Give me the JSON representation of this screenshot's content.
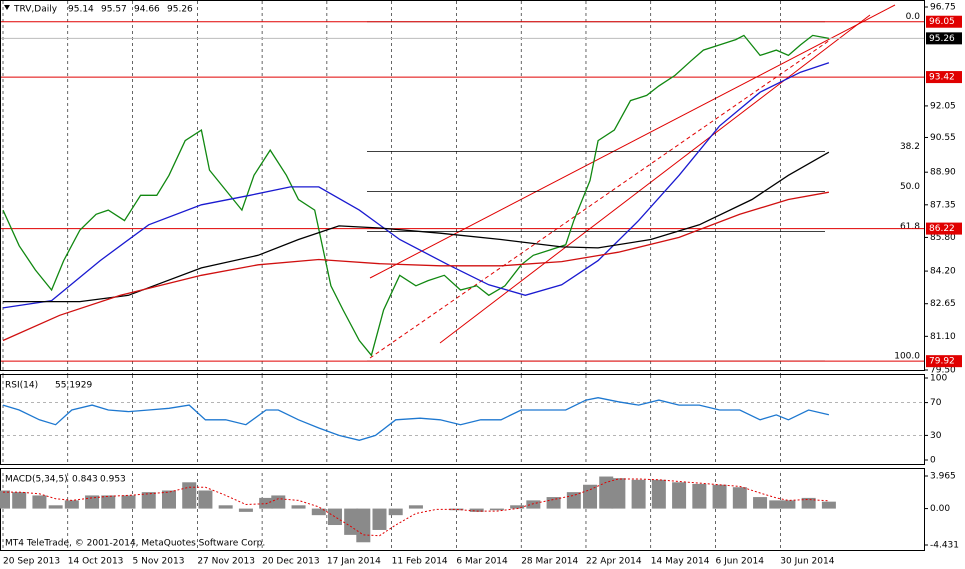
{
  "chart_data": [
    {
      "type": "line",
      "title": "TRV,Daily",
      "ohlc": [
        95.14,
        95.57,
        94.66,
        95.26
      ],
      "xlim": [
        0,
        227
      ],
      "xticks": [
        {
          "value": 0,
          "label": "20 Sep 2013"
        },
        {
          "value": 16,
          "label": "14 Oct 2013"
        },
        {
          "value": 32,
          "label": "5 Nov 2013"
        },
        {
          "value": 48,
          "label": "27 Nov 2013"
        },
        {
          "value": 64,
          "label": "20 Dec 2013"
        },
        {
          "value": 80,
          "label": "17 Jan 2014"
        },
        {
          "value": 96,
          "label": "11 Feb 2014"
        },
        {
          "value": 112,
          "label": "6 Mar 2014"
        },
        {
          "value": 128,
          "label": "28 Mar 2014"
        },
        {
          "value": 144,
          "label": "22 Apr 2014"
        },
        {
          "value": 160,
          "label": "14 May 2014"
        },
        {
          "value": 176,
          "label": "6 Jun 2014"
        },
        {
          "value": 192,
          "label": "30 Jun 2014"
        }
      ],
      "ylim": [
        79.5,
        96.75
      ],
      "yticks": [
        {
          "value": 79.5,
          "label": "79.50"
        },
        {
          "value": 81.1,
          "label": "81.10"
        },
        82.65,
        {
          "value": 84.2,
          "label": "84.20"
        },
        {
          "value": 85.8,
          "label": "85.80"
        },
        87.35,
        {
          "value": 88.9,
          "label": "88.90"
        },
        90.55,
        92.05,
        96.75
      ],
      "grid": true,
      "series": [
        {
          "color": "#118811",
          "x": [
            0,
            4,
            8,
            12,
            15,
            19,
            23,
            26,
            30,
            34,
            38,
            41,
            45,
            49,
            51,
            55,
            59,
            62,
            66,
            70,
            73,
            77,
            81,
            84,
            88,
            91,
            94,
            98,
            102,
            105,
            109,
            113,
            117,
            120,
            124,
            128,
            131,
            135,
            139,
            141,
            145,
            147,
            151,
            155,
            159,
            162,
            166,
            170,
            173,
            177,
            181,
            183,
            187,
            191,
            194,
            197,
            200,
            204
          ],
          "values": [
            87.1,
            85.4,
            84.25,
            83.3,
            84.7,
            86.15,
            86.9,
            87.1,
            86.6,
            87.8,
            87.8,
            88.75,
            90.4,
            90.9,
            89.0,
            88.05,
            87.1,
            88.75,
            89.95,
            88.75,
            87.6,
            87.1,
            83.5,
            82.35,
            80.9,
            80.2,
            82.35,
            84.0,
            83.5,
            83.75,
            84.0,
            83.3,
            83.5,
            83.05,
            83.5,
            84.5,
            84.95,
            85.2,
            85.45,
            86.6,
            88.5,
            90.4,
            90.9,
            92.3,
            92.55,
            93.0,
            93.5,
            94.2,
            94.7,
            94.95,
            95.2,
            95.4,
            94.45,
            94.7,
            94.45,
            94.95,
            95.4,
            95.26
          ]
        },
        {
          "color": "#1a1ad0",
          "x": [
            0,
            12,
            24,
            36,
            49,
            61,
            71,
            78,
            88,
            98,
            110,
            120,
            129,
            138,
            147,
            157,
            167,
            177,
            187,
            197,
            204
          ],
          "values": [
            82.45,
            82.8,
            84.7,
            86.4,
            87.35,
            87.8,
            88.2,
            88.2,
            87.1,
            85.7,
            84.5,
            83.55,
            83.05,
            83.55,
            84.7,
            86.6,
            88.75,
            91.1,
            92.7,
            93.65,
            94.1
          ]
        },
        {
          "color": "#000000",
          "x": [
            0,
            19,
            31,
            49,
            63,
            73,
            83,
            93,
            108,
            123,
            138,
            147,
            160,
            172,
            185,
            194,
            204
          ],
          "values": [
            82.75,
            82.75,
            83.05,
            84.35,
            84.95,
            85.7,
            86.35,
            86.25,
            86.0,
            85.7,
            85.35,
            85.3,
            85.7,
            86.4,
            87.6,
            88.75,
            89.85
          ]
        },
        {
          "color": "#d01010",
          "x": [
            0,
            14,
            29,
            49,
            63,
            78,
            93,
            108,
            123,
            138,
            152,
            167,
            182,
            194,
            204
          ],
          "values": [
            80.9,
            82.1,
            83.05,
            84.0,
            84.5,
            84.75,
            84.55,
            84.45,
            84.45,
            84.65,
            85.1,
            85.8,
            86.9,
            87.6,
            87.95
          ]
        }
      ],
      "price_lines": [
        {
          "value": 96.05,
          "color": "#e00000"
        },
        {
          "value": 95.26,
          "color": "#000000"
        },
        {
          "value": 93.42,
          "color": "#e00000"
        },
        {
          "value": 86.22,
          "color": "#e00000"
        },
        {
          "value": 79.92,
          "color": "#e00000"
        }
      ],
      "fibonacci": [
        {
          "value": 96.05,
          "label": "0.0"
        },
        {
          "value": 89.89,
          "label": "38.2"
        },
        {
          "value": 87.99,
          "label": "50.0"
        },
        {
          "value": 86.08,
          "label": "61.8"
        },
        {
          "value": 79.92,
          "label": "100.0"
        }
      ]
    },
    {
      "type": "line",
      "title": "RSI(14)",
      "last": 55.1929,
      "ylim": [
        0,
        100
      ],
      "yticks": [
        0,
        30,
        70,
        100
      ],
      "grid": true,
      "series": [
        {
          "color": "#1e78d0",
          "x": [
            0,
            4,
            9,
            13,
            17,
            22,
            26,
            31,
            36,
            41,
            46,
            50,
            55,
            60,
            65,
            68,
            73,
            78,
            83,
            88,
            92,
            97,
            103,
            108,
            113,
            118,
            123,
            128,
            134,
            139,
            144,
            147,
            152,
            157,
            162,
            167,
            172,
            177,
            182,
            187,
            191,
            194,
            199,
            204
          ],
          "values": [
            67,
            61,
            49,
            43,
            61,
            67,
            61,
            59,
            61,
            63,
            67,
            49,
            49,
            43,
            61,
            61,
            49,
            39,
            30,
            24,
            30,
            49,
            51,
            49,
            43,
            49,
            49,
            61,
            61,
            61,
            73,
            76,
            71,
            67,
            73,
            67,
            67,
            61,
            61,
            49,
            55,
            49,
            61,
            55.1929
          ]
        }
      ]
    },
    {
      "type": "histogram-line",
      "title": "MACD(5,34,5)",
      "last": [
        0.843,
        0.953
      ],
      "ylim": [
        -4.431,
        3.965
      ],
      "yticks": [
        -4.431,
        {
          "value": 0,
          "label": "0.00"
        },
        3.965
      ],
      "x": [
        0,
        4,
        9,
        13,
        17,
        22,
        26,
        31,
        36,
        41,
        46,
        50,
        55,
        60,
        65,
        68,
        73,
        78,
        82,
        86,
        89,
        93,
        97,
        102,
        107,
        112,
        117,
        122,
        127,
        131,
        136,
        141,
        145,
        149,
        152,
        157,
        162,
        167,
        172,
        177,
        182,
        187,
        191,
        194,
        199,
        204
      ],
      "series": [
        {
          "color": "#8a8a8a",
          "values": [
            2.2,
            2.0,
            1.6,
            0.4,
            1.0,
            1.6,
            1.6,
            1.6,
            2.0,
            2.2,
            3.2,
            2.2,
            0.4,
            -0.4,
            1.3,
            1.6,
            0.4,
            -0.8,
            -2.0,
            -3.2,
            -4.1,
            -2.6,
            -0.8,
            0.4,
            0,
            -0.2,
            -0.4,
            -0.2,
            0.4,
            1.0,
            1.4,
            2.0,
            2.9,
            3.9,
            3.7,
            3.5,
            3.5,
            3.2,
            3.0,
            2.9,
            2.6,
            1.4,
            1.0,
            1.0,
            1.3,
            0.843
          ]
        },
        {
          "color": "#e00000",
          "values": [
            2.0,
            2.0,
            1.8,
            1.2,
            1.0,
            1.3,
            1.5,
            1.6,
            1.8,
            2.0,
            2.6,
            2.6,
            1.6,
            0.5,
            0.6,
            1.2,
            1.0,
            0.2,
            -1.0,
            -2.2,
            -3.2,
            -3.3,
            -2.0,
            -0.6,
            -0.1,
            -0.1,
            -0.3,
            -0.3,
            0.0,
            0.6,
            1.1,
            1.6,
            2.3,
            3.2,
            3.6,
            3.6,
            3.5,
            3.3,
            3.1,
            2.9,
            2.7,
            1.9,
            1.3,
            1.0,
            1.1,
            0.953
          ]
        }
      ]
    }
  ],
  "footer": "MT4 TeleTrade, © 2001-2014, MetaQuotes Software Corp."
}
